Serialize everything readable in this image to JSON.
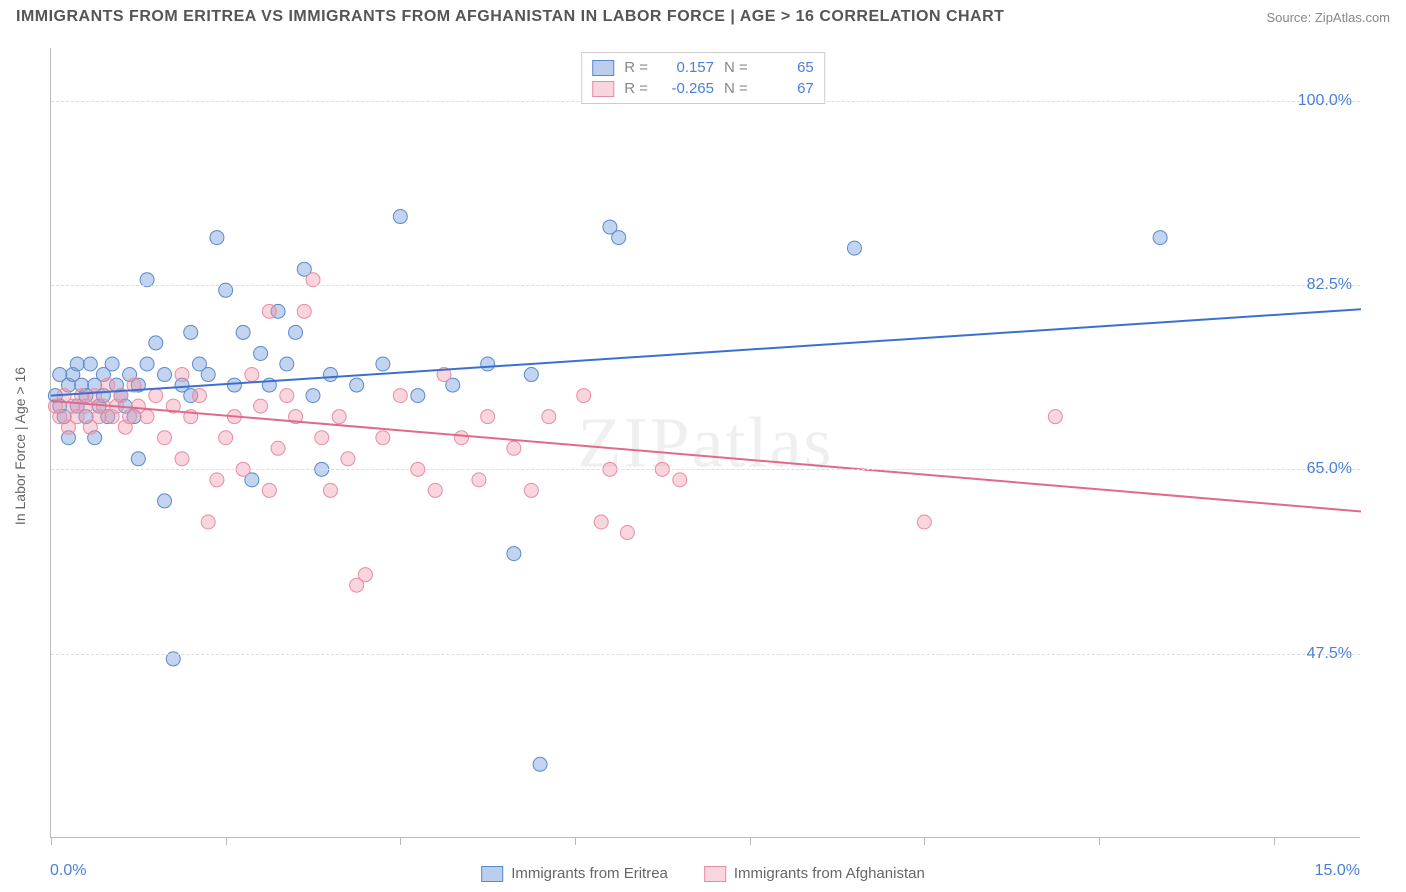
{
  "header": {
    "title": "IMMIGRANTS FROM ERITREA VS IMMIGRANTS FROM AFGHANISTAN IN LABOR FORCE | AGE > 16 CORRELATION CHART",
    "source": "Source: ZipAtlas.com"
  },
  "watermark": "ZIPatlas",
  "chart": {
    "type": "scatter",
    "background_color": "#ffffff",
    "grid_color": "#dddddd",
    "axis_color": "#bbbbbb",
    "tick_label_color": "#4a7fd8",
    "tick_fontsize": 16,
    "y_axis_title": "In Labor Force | Age > 16",
    "y_axis_title_color": "#666666",
    "y_axis_title_fontsize": 14,
    "xlim": [
      0,
      15
    ],
    "ylim": [
      30,
      105
    ],
    "x_ticks": [
      0,
      2,
      4,
      6,
      8,
      10,
      12,
      14
    ],
    "x_tick_labels": {
      "left": "0.0%",
      "right": "15.0%"
    },
    "y_gridlines": [
      47.5,
      65.0,
      82.5,
      100.0
    ],
    "y_tick_labels": [
      "47.5%",
      "65.0%",
      "82.5%",
      "100.0%"
    ],
    "series": [
      {
        "name": "Immigrants from Eritrea",
        "marker_fill": "rgba(120,160,220,0.45)",
        "marker_stroke": "#5a8acc",
        "marker_radius": 7,
        "line_color": "#3c6fd0",
        "line_width": 2,
        "R": "0.157",
        "N": "65",
        "regression": {
          "x1": 0,
          "y1": 72.0,
          "x2": 15,
          "y2": 80.2
        },
        "points": [
          [
            0.05,
            72
          ],
          [
            0.1,
            71
          ],
          [
            0.1,
            74
          ],
          [
            0.15,
            70
          ],
          [
            0.2,
            73
          ],
          [
            0.2,
            68
          ],
          [
            0.25,
            74
          ],
          [
            0.3,
            75
          ],
          [
            0.3,
            71
          ],
          [
            0.35,
            73
          ],
          [
            0.4,
            72
          ],
          [
            0.4,
            70
          ],
          [
            0.45,
            75
          ],
          [
            0.5,
            73
          ],
          [
            0.5,
            68
          ],
          [
            0.55,
            71
          ],
          [
            0.6,
            74
          ],
          [
            0.6,
            72
          ],
          [
            0.65,
            70
          ],
          [
            0.7,
            75
          ],
          [
            0.75,
            73
          ],
          [
            0.8,
            72
          ],
          [
            0.85,
            71
          ],
          [
            0.9,
            74
          ],
          [
            0.95,
            70
          ],
          [
            1.0,
            73
          ],
          [
            1.0,
            66
          ],
          [
            1.1,
            83
          ],
          [
            1.1,
            75
          ],
          [
            1.2,
            77
          ],
          [
            1.3,
            74
          ],
          [
            1.3,
            62
          ],
          [
            1.4,
            47
          ],
          [
            1.5,
            73
          ],
          [
            1.6,
            72
          ],
          [
            1.6,
            78
          ],
          [
            1.7,
            75
          ],
          [
            1.8,
            74
          ],
          [
            1.9,
            87
          ],
          [
            2.0,
            82
          ],
          [
            2.1,
            73
          ],
          [
            2.2,
            78
          ],
          [
            2.3,
            64
          ],
          [
            2.4,
            76
          ],
          [
            2.5,
            73
          ],
          [
            2.6,
            80
          ],
          [
            2.7,
            75
          ],
          [
            2.8,
            78
          ],
          [
            2.9,
            84
          ],
          [
            3.0,
            72
          ],
          [
            3.1,
            65
          ],
          [
            3.2,
            74
          ],
          [
            3.5,
            73
          ],
          [
            3.8,
            75
          ],
          [
            4.0,
            89
          ],
          [
            4.2,
            72
          ],
          [
            4.6,
            73
          ],
          [
            5.0,
            75
          ],
          [
            5.3,
            57
          ],
          [
            5.5,
            74
          ],
          [
            6.4,
            88
          ],
          [
            6.5,
            87
          ],
          [
            5.6,
            37
          ],
          [
            9.2,
            86
          ],
          [
            12.7,
            87
          ]
        ]
      },
      {
        "name": "Immigrants from Afghanistan",
        "marker_fill": "rgba(240,150,170,0.4)",
        "marker_stroke": "#e88ca3",
        "marker_radius": 7,
        "line_color": "#e06a8a",
        "line_width": 2,
        "R": "-0.265",
        "N": "67",
        "regression": {
          "x1": 0,
          "y1": 71.5,
          "x2": 15,
          "y2": 61.0
        },
        "points": [
          [
            0.05,
            71
          ],
          [
            0.1,
            70
          ],
          [
            0.15,
            72
          ],
          [
            0.2,
            69
          ],
          [
            0.25,
            71
          ],
          [
            0.3,
            70
          ],
          [
            0.35,
            72
          ],
          [
            0.4,
            71
          ],
          [
            0.45,
            69
          ],
          [
            0.5,
            72
          ],
          [
            0.55,
            70
          ],
          [
            0.6,
            71
          ],
          [
            0.65,
            73
          ],
          [
            0.7,
            70
          ],
          [
            0.75,
            71
          ],
          [
            0.8,
            72
          ],
          [
            0.85,
            69
          ],
          [
            0.9,
            70
          ],
          [
            0.95,
            73
          ],
          [
            1.0,
            71
          ],
          [
            1.1,
            70
          ],
          [
            1.2,
            72
          ],
          [
            1.3,
            68
          ],
          [
            1.4,
            71
          ],
          [
            1.5,
            66
          ],
          [
            1.5,
            74
          ],
          [
            1.6,
            70
          ],
          [
            1.7,
            72
          ],
          [
            1.8,
            60
          ],
          [
            1.9,
            64
          ],
          [
            2.0,
            68
          ],
          [
            2.1,
            70
          ],
          [
            2.2,
            65
          ],
          [
            2.3,
            74
          ],
          [
            2.4,
            71
          ],
          [
            2.5,
            63
          ],
          [
            2.5,
            80
          ],
          [
            2.6,
            67
          ],
          [
            2.7,
            72
          ],
          [
            2.8,
            70
          ],
          [
            2.9,
            80
          ],
          [
            3.0,
            83
          ],
          [
            3.1,
            68
          ],
          [
            3.2,
            63
          ],
          [
            3.3,
            70
          ],
          [
            3.4,
            66
          ],
          [
            3.5,
            54
          ],
          [
            3.6,
            55
          ],
          [
            3.8,
            68
          ],
          [
            4.0,
            72
          ],
          [
            4.2,
            65
          ],
          [
            4.4,
            63
          ],
          [
            4.5,
            74
          ],
          [
            4.7,
            68
          ],
          [
            4.9,
            64
          ],
          [
            5.0,
            70
          ],
          [
            5.3,
            67
          ],
          [
            5.5,
            63
          ],
          [
            5.7,
            70
          ],
          [
            6.1,
            72
          ],
          [
            6.3,
            60
          ],
          [
            6.4,
            65
          ],
          [
            6.6,
            59
          ],
          [
            7.0,
            65
          ],
          [
            7.2,
            64
          ],
          [
            10.0,
            60
          ],
          [
            11.5,
            70
          ]
        ]
      }
    ]
  },
  "legend": {
    "r_label": "R =",
    "n_label": "N ="
  }
}
